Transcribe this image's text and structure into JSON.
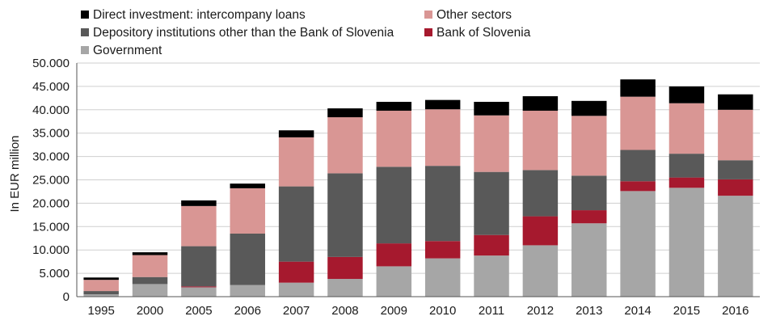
{
  "chart_data": {
    "type": "bar",
    "stacked": true,
    "title": "",
    "xlabel": "",
    "ylabel": "In EUR million",
    "ylim": [
      0,
      50000
    ],
    "y_ticks": [
      "0",
      "5.000",
      "10.000",
      "15.000",
      "20.000",
      "25.000",
      "30.000",
      "35.000",
      "40.000",
      "45.000",
      "50.000"
    ],
    "grid": true,
    "legend_position": "top",
    "categories": [
      "1995",
      "2000",
      "2005",
      "2006",
      "2007",
      "2008",
      "2009",
      "2010",
      "2011",
      "2012",
      "2013",
      "2014",
      "2015",
      "2016"
    ],
    "series": [
      {
        "name": "Government",
        "color": "#a6a6a6",
        "values": [
          500,
          2700,
          2000,
          2500,
          3000,
          3800,
          6500,
          8200,
          8800,
          11000,
          15700,
          22600,
          23300,
          21600
        ]
      },
      {
        "name": "Bank of Slovenia",
        "color": "#a6192e",
        "values": [
          0,
          0,
          200,
          0,
          4500,
          4700,
          4900,
          3700,
          4400,
          6200,
          2800,
          2100,
          2200,
          3500
        ]
      },
      {
        "name": "Depository institutions other than the Bank of Slovenia",
        "color": "#595959",
        "values": [
          700,
          1500,
          8600,
          11000,
          16100,
          17900,
          16400,
          16100,
          13500,
          9900,
          7400,
          6700,
          5100,
          4100
        ]
      },
      {
        "name": "Other sectors",
        "color": "#d99694",
        "values": [
          2400,
          4700,
          8600,
          9700,
          10500,
          12000,
          12000,
          12100,
          12100,
          12700,
          12800,
          11400,
          10800,
          10800
        ]
      },
      {
        "name": "Direct investment: intercompany loans",
        "color": "#000000",
        "values": [
          500,
          600,
          1200,
          1000,
          1500,
          1900,
          1900,
          2000,
          2900,
          3100,
          3200,
          3700,
          3600,
          3300
        ]
      }
    ],
    "legend": {
      "columns": [
        [
          "Direct investment: intercompany loans",
          "Depository institutions other than the Bank of Slovenia",
          "Government"
        ],
        [
          "Other sectors",
          "Bank of Slovenia"
        ]
      ]
    }
  }
}
